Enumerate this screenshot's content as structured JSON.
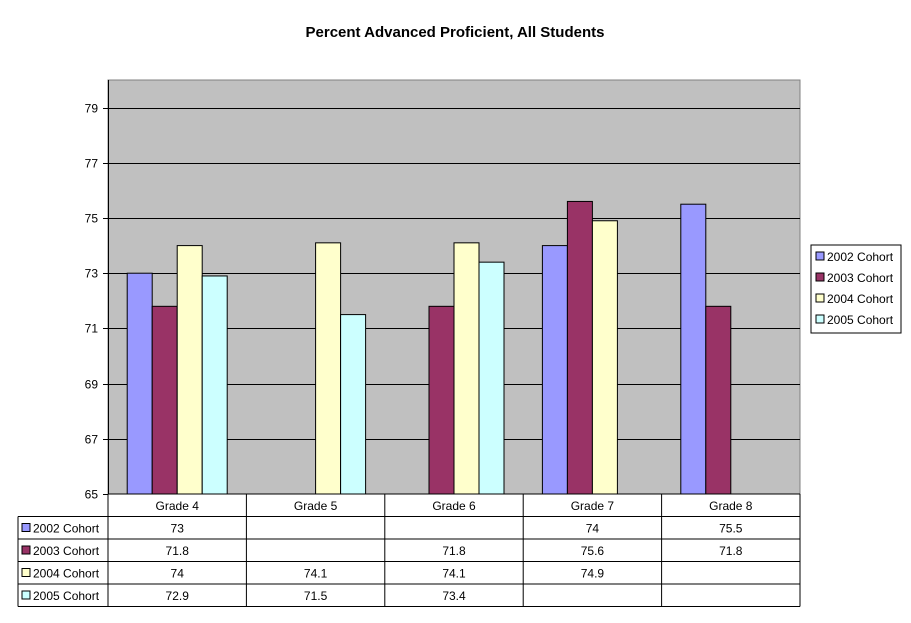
{
  "chart_data": {
    "type": "bar",
    "title": "Percent Advanced Proficient, All Students",
    "xlabel": "",
    "ylabel": "",
    "categories": [
      "Grade 4",
      "Grade 5",
      "Grade 6",
      "Grade 7",
      "Grade 8"
    ],
    "series": [
      {
        "name": "2002 Cohort",
        "color": "#9999FF",
        "values": [
          73,
          null,
          null,
          74,
          75.5
        ],
        "labels": [
          "73",
          "",
          "",
          "74",
          "75.5"
        ]
      },
      {
        "name": "2003 Cohort",
        "color": "#993366",
        "values": [
          71.8,
          null,
          71.8,
          75.6,
          71.8
        ],
        "labels": [
          "71.8",
          "",
          "71.8",
          "75.6",
          "71.8"
        ]
      },
      {
        "name": "2004 Cohort",
        "color": "#FFFFCC",
        "values": [
          74,
          74.1,
          74.1,
          74.9,
          null
        ],
        "labels": [
          "74",
          "74.1",
          "74.1",
          "74.9",
          ""
        ]
      },
      {
        "name": "2005 Cohort",
        "color": "#CCFFFF",
        "values": [
          72.9,
          71.5,
          73.4,
          null,
          null
        ],
        "labels": [
          "72.9",
          "71.5",
          "73.4",
          "",
          ""
        ]
      }
    ],
    "ylim": [
      65,
      80
    ],
    "yticks": [
      "65",
      "67",
      "69",
      "71",
      "73",
      "75",
      "77",
      "79"
    ],
    "grid": true,
    "legend": "right",
    "data_table": true,
    "plot_background": "#C0C0C0"
  }
}
